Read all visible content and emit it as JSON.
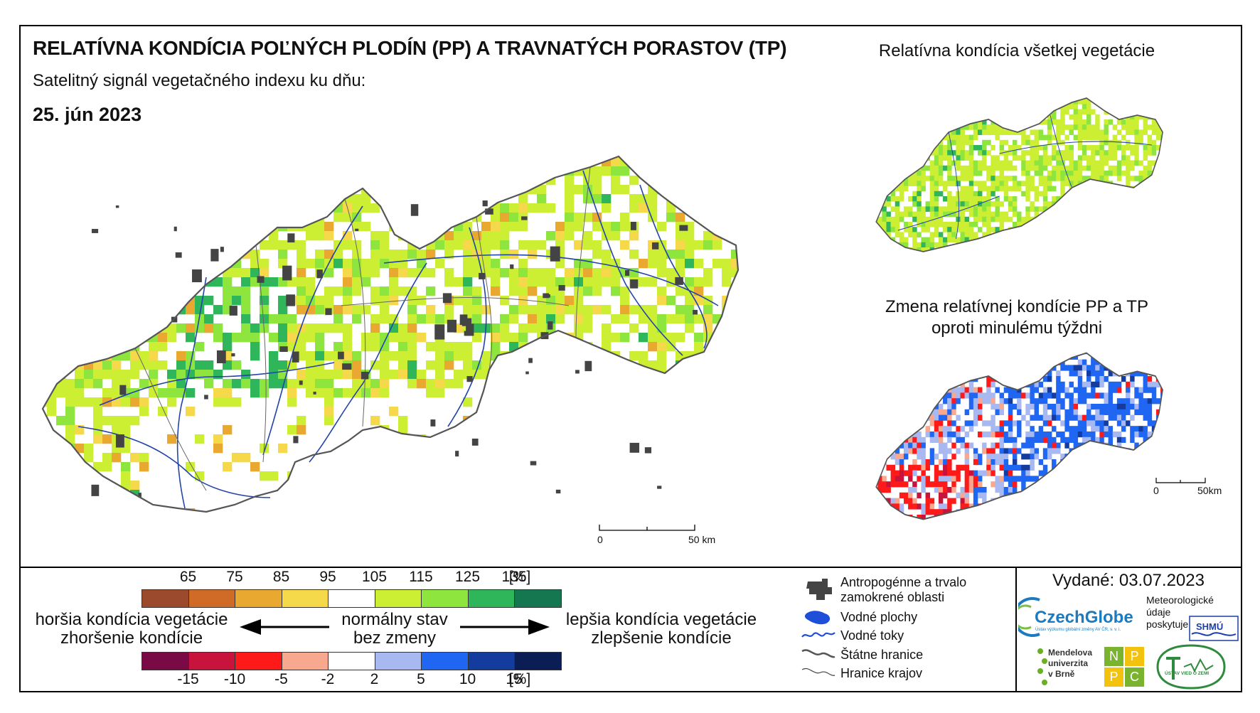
{
  "header": {
    "title": "RELATÍVNA KONDÍCIA POĽNÝCH PLODÍN (PP) A TRAVNATÝCH PORASTOV (TP)",
    "subtitle": "Satelitný signál vegetačného indexu ku dňu:",
    "date": "25. jún 2023"
  },
  "insets": {
    "all_vegetation_title": "Relatívna kondícia všetkej vegetácie",
    "change_title_line1": "Zmena relatívnej kondície PP a TP",
    "change_title_line2": "oproti minulému týždni"
  },
  "scalebars": {
    "main": {
      "start": "0",
      "end": "50 km"
    },
    "inset": {
      "start": "0",
      "end": "50km"
    }
  },
  "legend": {
    "condition_ticks": [
      "65",
      "75",
      "85",
      "95",
      "105",
      "115",
      "125",
      "135",
      "[%]"
    ],
    "condition_colors": [
      "#9b4a2e",
      "#cf6b27",
      "#e9a930",
      "#f5d94a",
      "#ffffff",
      "#ccee33",
      "#8ee53d",
      "#2fb55a",
      "#15774f"
    ],
    "change_ticks": [
      "-15",
      "-10",
      "-5",
      "-2",
      "2",
      "5",
      "10",
      "15",
      "[%]"
    ],
    "change_colors": [
      "#7a0a45",
      "#c8143c",
      "#ff1a1a",
      "#f8a88e",
      "#ffffff",
      "#a8b8f0",
      "#1f66f2",
      "#143c9e",
      "#0b1d55"
    ],
    "worse_line1": "horšia kondícia vegetácie",
    "worse_line2": "zhoršenie kondície",
    "normal_line1": "normálny stav",
    "normal_line2": "bez zmeny",
    "better_line1": "lepšia kondícia vegetácie",
    "better_line2": "zlepšenie kondície"
  },
  "symbols": {
    "urban_line1": "Antropogénne a trvalo",
    "urban_line2": "zamokrené oblasti",
    "water_bodies": "Vodné plochy",
    "rivers": "Vodné toky",
    "state_border": "Štátne hranice",
    "region_border": "Hranice krajov"
  },
  "footer": {
    "issued": "Vydané: 03.07.2023",
    "czechglobe": "CzechGlobe",
    "czechglobe_sub": "Ústav výzkumu globální změny AV ČR, v. v. i.",
    "met_data_line1": "Meteorologické",
    "met_data_line2": "údaje",
    "met_data_line3": "poskytuje:",
    "shmu": "SHMÚ",
    "mendel_line1": "Mendelova",
    "mendel_line2": "univerzita",
    "mendel_line3": "v Brně",
    "nppc": [
      "N",
      "P",
      "P",
      "C"
    ],
    "uvz": "ÚSTAV VIED O ZEMI"
  },
  "colors": {
    "urban": "#444444",
    "water": "#1f4fd8",
    "river": "#2244aa",
    "border": "#555555"
  }
}
